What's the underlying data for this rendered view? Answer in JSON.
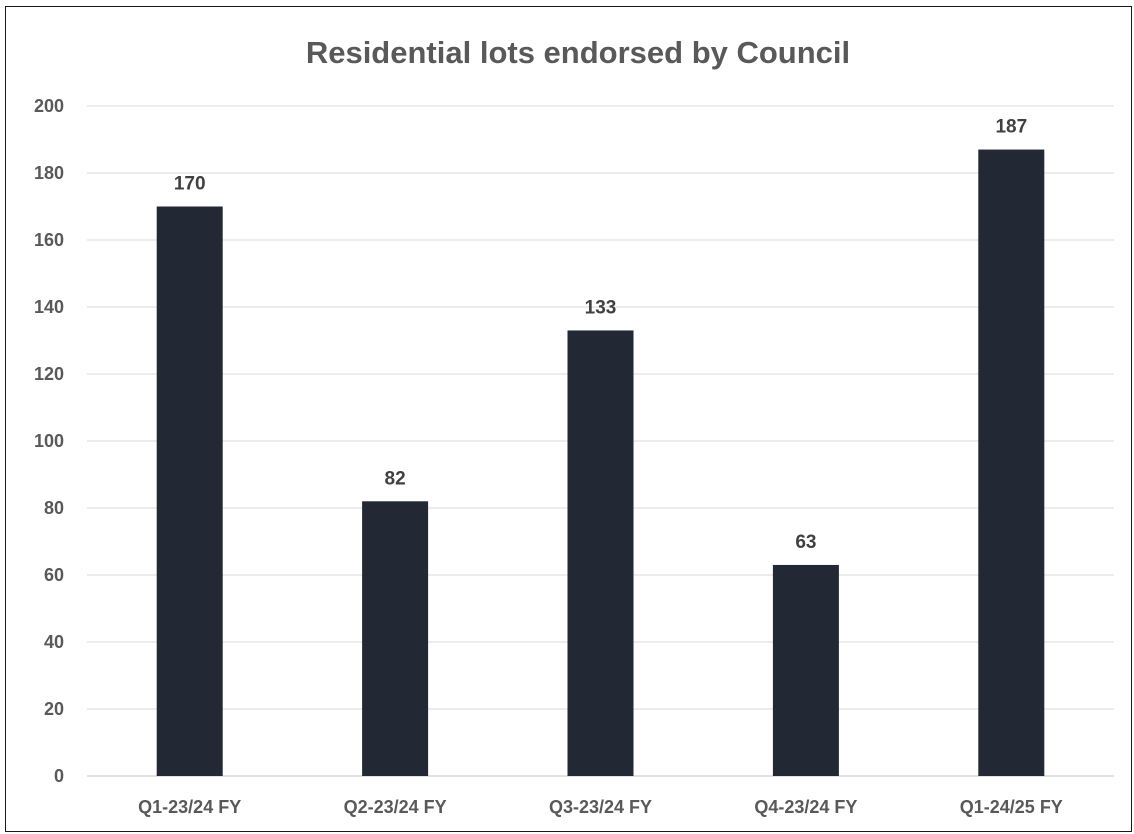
{
  "chart_data": {
    "type": "bar",
    "title": "Residential lots endorsed by Council",
    "categories": [
      "Q1-23/24 FY",
      "Q2-23/24 FY",
      "Q3-23/24 FY",
      "Q4-23/24 FY",
      "Q1-24/25 FY"
    ],
    "values": [
      170,
      82,
      133,
      63,
      187
    ],
    "data_labels": [
      "170",
      "82",
      "133",
      "63",
      "187"
    ],
    "ylim": [
      0,
      200
    ],
    "y_ticks": [
      0,
      20,
      40,
      60,
      80,
      100,
      120,
      140,
      160,
      180,
      200
    ],
    "grid": true,
    "legend": "none",
    "colors": {
      "bar": "#222934",
      "grid": "#d9d9d9",
      "text": "#595959",
      "label": "#404040"
    }
  }
}
